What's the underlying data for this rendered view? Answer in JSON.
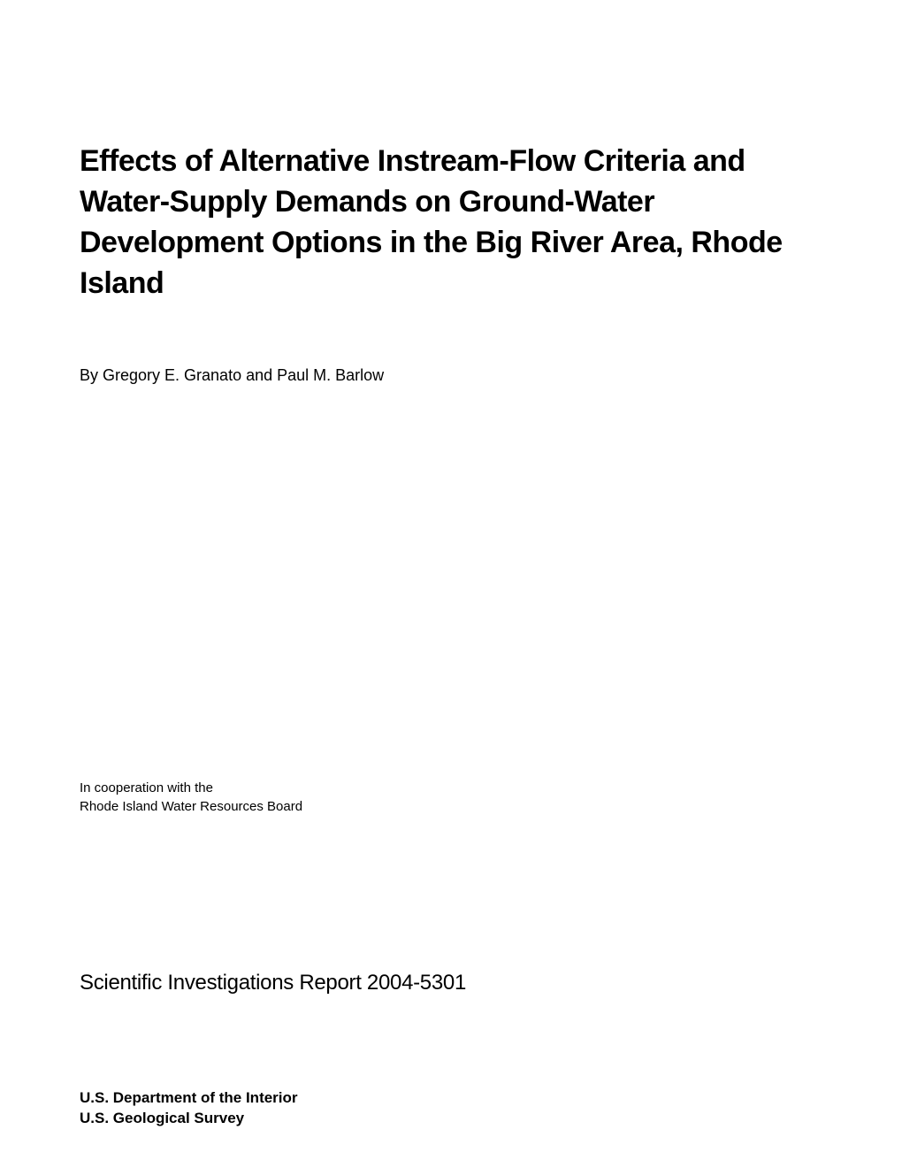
{
  "title": "Effects of Alternative Instream-Flow Criteria and Water-Supply Demands on Ground-Water Development Options in the Big River Area,  Rhode Island",
  "authors": "By Gregory E. Granato and Paul M. Barlow",
  "cooperation": {
    "line1": "In cooperation with the",
    "line2": "Rhode Island Water Resources Board"
  },
  "report_series": "Scientific Investigations Report 2004-5301",
  "publisher": {
    "line1": "U.S. Department of the Interior",
    "line2": "U.S. Geological Survey"
  },
  "colors": {
    "background": "#ffffff",
    "text": "#000000"
  },
  "typography": {
    "title_fontsize": 34,
    "title_fontweight": "bold",
    "authors_fontsize": 18,
    "cooperation_fontsize": 15,
    "report_series_fontsize": 24,
    "publisher_fontsize": 17,
    "publisher_fontweight": "bold"
  }
}
